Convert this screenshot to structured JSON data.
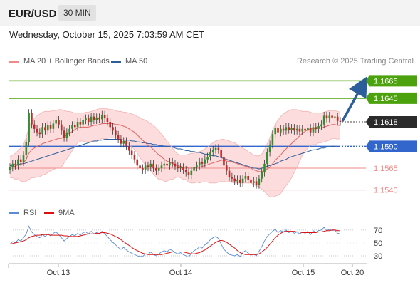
{
  "header": {
    "symbol": "EUR/USD",
    "timeframe": "30 MIN"
  },
  "datetime": "Wednesday, October 15, 2025 7:03:59 AM CET",
  "legend": {
    "bollinger": "MA 20 + Bollinger Bands",
    "ma50": "MA 50"
  },
  "credit": "Research © 2025 Trading Central",
  "rsi_legend": {
    "rsi": "RSI",
    "ma9": "9MA"
  },
  "colors": {
    "resistance": "#4ca20d",
    "support": "#f08a8a",
    "pivot": "#3366cc",
    "price": "#2b2b2b",
    "candle_up": "#2f8f2f",
    "candle_down": "#c62828",
    "band_fill": "#fbd6d6",
    "arrow": "#2d5e9c"
  },
  "chart_data": [
    {
      "type": "candlestick",
      "x_ticks": [
        "Oct 13",
        "Oct 14",
        "Oct 15",
        "Oct 20"
      ],
      "ylim": [
        1.1525,
        1.168
      ],
      "levels": [
        {
          "value": 1.1665,
          "label": "1.1665",
          "kind": "resistance"
        },
        {
          "value": 1.1645,
          "label": "1.1645",
          "kind": "resistance"
        },
        {
          "value": 1.1618,
          "label": "1.1618",
          "kind": "price"
        },
        {
          "value": 1.159,
          "label": "1.1590",
          "kind": "pivot"
        },
        {
          "value": 1.1565,
          "label": "1.1565",
          "kind": "support"
        },
        {
          "value": 1.154,
          "label": "1.1540",
          "kind": "support"
        }
      ],
      "close": [
        1.1566,
        1.157,
        1.1568,
        1.1575,
        1.1572,
        1.158,
        1.1595,
        1.1628,
        1.1615,
        1.161,
        1.1606,
        1.1604,
        1.1612,
        1.1608,
        1.1614,
        1.161,
        1.1616,
        1.162,
        1.1615,
        1.1608,
        1.16,
        1.1606,
        1.161,
        1.1614,
        1.1612,
        1.1618,
        1.1615,
        1.162,
        1.1622,
        1.1618,
        1.1624,
        1.162,
        1.1623,
        1.1621,
        1.1626,
        1.1622,
        1.1618,
        1.1612,
        1.1608,
        1.1603,
        1.1598,
        1.1593,
        1.1596,
        1.159,
        1.1585,
        1.158,
        1.1575,
        1.1568,
        1.1565,
        1.1563,
        1.1568,
        1.1566,
        1.157,
        1.1565,
        1.1562,
        1.1565,
        1.1568,
        1.157,
        1.1568,
        1.1572,
        1.157,
        1.1567,
        1.1565,
        1.1566,
        1.1563,
        1.156,
        1.1557,
        1.1562,
        1.1566,
        1.1568,
        1.1572,
        1.157,
        1.1575,
        1.1578,
        1.1583,
        1.1586,
        1.1588,
        1.1586,
        1.1578,
        1.1568,
        1.1562,
        1.1555,
        1.1553,
        1.155,
        1.1552,
        1.1548,
        1.1553,
        1.1556,
        1.1552,
        1.1548,
        1.155,
        1.1546,
        1.1553,
        1.156,
        1.157,
        1.1583,
        1.1592,
        1.1604,
        1.1611,
        1.1606,
        1.161,
        1.1608,
        1.1612,
        1.1609,
        1.1611,
        1.1608,
        1.161,
        1.1607,
        1.161,
        1.1608,
        1.1611,
        1.1606,
        1.1612,
        1.161,
        1.1613,
        1.1615,
        1.1625,
        1.1622,
        1.1625,
        1.1623,
        1.1624,
        1.1619,
        1.1618
      ],
      "ma20": [
        1.1566,
        1.1567,
        1.1567,
        1.1569,
        1.1569,
        1.1571,
        1.1575,
        1.1582,
        1.1586,
        1.1588,
        1.159,
        1.1591,
        1.1593,
        1.1594,
        1.1595,
        1.1596,
        1.1597,
        1.1598,
        1.1599,
        1.1599,
        1.1601,
        1.1603,
        1.1605,
        1.1607,
        1.1609,
        1.1611,
        1.1612,
        1.1612,
        1.1612,
        1.1612,
        1.1613,
        1.1614,
        1.1614,
        1.1615,
        1.1616,
        1.1616,
        1.1616,
        1.1616,
        1.1616,
        1.1615,
        1.1615,
        1.1614,
        1.1613,
        1.1612,
        1.161,
        1.1608,
        1.1606,
        1.1603,
        1.16,
        1.1597,
        1.1594,
        1.1591,
        1.1589,
        1.1586,
        1.1583,
        1.158,
        1.1578,
        1.1575,
        1.1573,
        1.1572,
        1.157,
        1.1569,
        1.1568,
        1.1567,
        1.1566,
        1.1566,
        1.1565,
        1.1565,
        1.1565,
        1.1566,
        1.1566,
        1.1567,
        1.1568,
        1.1569,
        1.157,
        1.1571,
        1.1572,
        1.1573,
        1.1574,
        1.1574,
        1.1573,
        1.1573,
        1.1572,
        1.1571,
        1.157,
        1.1569,
        1.1568,
        1.1567,
        1.1566,
        1.1565,
        1.1563,
        1.1562,
        1.1561,
        1.1561,
        1.1562,
        1.1564,
        1.1566,
        1.157,
        1.1574,
        1.1577,
        1.158,
        1.1584,
        1.1587,
        1.159,
        1.1593,
        1.1596,
        1.1599,
        1.1602,
        1.1605,
        1.1607,
        1.1609,
        1.161,
        1.161,
        1.161,
        1.1611,
        1.1611,
        1.1612,
        1.1613,
        1.1614,
        1.1615,
        1.1615,
        1.1614,
        1.1614
      ],
      "bb_upper": [
        1.1578,
        1.158,
        1.1582,
        1.1585,
        1.1588,
        1.1592,
        1.16,
        1.1612,
        1.1618,
        1.1622,
        1.1625,
        1.1627,
        1.1629,
        1.163,
        1.163,
        1.163,
        1.1631,
        1.1631,
        1.1632,
        1.1632,
        1.1631,
        1.163,
        1.163,
        1.1629,
        1.1628,
        1.1628,
        1.1628,
        1.1628,
        1.1629,
        1.1629,
        1.163,
        1.1631,
        1.1632,
        1.1633,
        1.1633,
        1.1633,
        1.1633,
        1.1632,
        1.1632,
        1.1631,
        1.163,
        1.163,
        1.1629,
        1.1629,
        1.1628,
        1.1627,
        1.1626,
        1.1624,
        1.1623,
        1.1621,
        1.162,
        1.1618,
        1.1616,
        1.1614,
        1.1611,
        1.1608,
        1.1604,
        1.16,
        1.1596,
        1.1592,
        1.1588,
        1.1584,
        1.1581,
        1.158,
        1.158,
        1.158,
        1.1581,
        1.1582,
        1.1582,
        1.1583,
        1.1584,
        1.1585,
        1.1587,
        1.1589,
        1.1592,
        1.1594,
        1.1596,
        1.1597,
        1.1598,
        1.1598,
        1.1597,
        1.1596,
        1.1595,
        1.1594,
        1.1592,
        1.159,
        1.1588,
        1.1586,
        1.1584,
        1.1582,
        1.158,
        1.1579,
        1.1579,
        1.1581,
        1.1586,
        1.1593,
        1.16,
        1.1608,
        1.1615,
        1.162,
        1.1624,
        1.1627,
        1.1629,
        1.1631,
        1.1632,
        1.1632,
        1.1632,
        1.1631,
        1.163,
        1.163,
        1.163,
        1.1629,
        1.1628,
        1.1628,
        1.1628,
        1.1628,
        1.1629,
        1.163,
        1.1631,
        1.1631,
        1.1631,
        1.163,
        1.1629
      ],
      "bb_lower": [
        1.1554,
        1.1554,
        1.1552,
        1.1553,
        1.155,
        1.155,
        1.155,
        1.1552,
        1.1554,
        1.1554,
        1.1555,
        1.1555,
        1.1557,
        1.1558,
        1.156,
        1.1562,
        1.1563,
        1.1565,
        1.1566,
        1.1566,
        1.1571,
        1.1576,
        1.158,
        1.1585,
        1.159,
        1.1594,
        1.1596,
        1.1596,
        1.1595,
        1.1595,
        1.1596,
        1.1597,
        1.1596,
        1.1597,
        1.1599,
        1.1599,
        1.1599,
        1.16,
        1.16,
        1.1599,
        1.16,
        1.1598,
        1.1597,
        1.1595,
        1.1592,
        1.1589,
        1.1586,
        1.1582,
        1.1577,
        1.1573,
        1.1568,
        1.1564,
        1.1562,
        1.1558,
        1.1555,
        1.1552,
        1.1552,
        1.155,
        1.155,
        1.1552,
        1.1552,
        1.1554,
        1.1555,
        1.1554,
        1.1552,
        1.1552,
        1.1549,
        1.1548,
        1.1548,
        1.1549,
        1.1548,
        1.1549,
        1.1549,
        1.1549,
        1.1548,
        1.1548,
        1.1548,
        1.1549,
        1.155,
        1.155,
        1.1549,
        1.155,
        1.1549,
        1.1548,
        1.1548,
        1.1548,
        1.1548,
        1.1548,
        1.1548,
        1.1548,
        1.1546,
        1.1545,
        1.1543,
        1.1541,
        1.1538,
        1.1535,
        1.1532,
        1.1532,
        1.1533,
        1.1534,
        1.1536,
        1.1541,
        1.1545,
        1.1549,
        1.1554,
        1.156,
        1.1566,
        1.1573,
        1.158,
        1.1584,
        1.1588,
        1.1591,
        1.1592,
        1.1592,
        1.1594,
        1.1594,
        1.1595,
        1.1596,
        1.1597,
        1.1599,
        1.1599,
        1.1598,
        1.1599
      ],
      "ma50": [
        1.1568,
        1.1568,
        1.1569,
        1.1569,
        1.157,
        1.157,
        1.1571,
        1.1572,
        1.1573,
        1.1574,
        1.1575,
        1.1576,
        1.1577,
        1.1578,
        1.1579,
        1.158,
        1.1581,
        1.1582,
        1.1583,
        1.1584,
        1.1585,
        1.1586,
        1.1587,
        1.1588,
        1.1589,
        1.159,
        1.1591,
        1.1592,
        1.1593,
        1.1594,
        1.1595,
        1.1596,
        1.1596,
        1.1597,
        1.1597,
        1.1598,
        1.1598,
        1.1598,
        1.1598,
        1.1598,
        1.1598,
        1.1598,
        1.1597,
        1.1597,
        1.1597,
        1.1596,
        1.1596,
        1.1595,
        1.1595,
        1.1594,
        1.1594,
        1.1593,
        1.1593,
        1.1592,
        1.1592,
        1.1591,
        1.1591,
        1.159,
        1.159,
        1.1589,
        1.1589,
        1.1588,
        1.1587,
        1.1587,
        1.1586,
        1.1585,
        1.1585,
        1.1584,
        1.1584,
        1.1583,
        1.1583,
        1.1582,
        1.1581,
        1.1581,
        1.158,
        1.1579,
        1.1579,
        1.1578,
        1.1577,
        1.1576,
        1.1575,
        1.1574,
        1.1573,
        1.1572,
        1.1571,
        1.157,
        1.1569,
        1.1568,
        1.1567,
        1.1566,
        1.1565,
        1.1565,
        1.1564,
        1.1565,
        1.1566,
        1.1567,
        1.1568,
        1.1569,
        1.157,
        1.1571,
        1.1573,
        1.1574,
        1.1575,
        1.1577,
        1.1578,
        1.1579,
        1.158,
        1.1581,
        1.1582,
        1.1583,
        1.1584,
        1.1585,
        1.1586,
        1.1586,
        1.1587,
        1.1588,
        1.1588,
        1.1589,
        1.1589,
        1.159,
        1.159
      ],
      "forecast": [
        1.1618,
        1.1665
      ]
    },
    {
      "type": "line",
      "name": "RSI",
      "y_ticks": [
        30,
        50,
        70
      ],
      "ylim": [
        20,
        82
      ],
      "rsi": [
        48,
        52,
        50,
        55,
        53,
        58,
        64,
        76,
        67,
        63,
        60,
        58,
        63,
        60,
        64,
        61,
        65,
        67,
        63,
        58,
        53,
        57,
        60,
        63,
        61,
        65,
        62,
        66,
        67,
        64,
        68,
        64,
        66,
        64,
        68,
        64,
        60,
        55,
        51,
        47,
        43,
        40,
        43,
        39,
        36,
        34,
        32,
        30,
        29,
        29,
        33,
        32,
        36,
        32,
        30,
        33,
        36,
        38,
        36,
        40,
        38,
        35,
        33,
        35,
        32,
        30,
        28,
        34,
        38,
        40,
        44,
        42,
        47,
        50,
        55,
        58,
        60,
        57,
        48,
        40,
        36,
        32,
        31,
        30,
        32,
        29,
        35,
        38,
        34,
        31,
        33,
        30,
        37,
        44,
        53,
        60,
        64,
        68,
        71,
        66,
        69,
        67,
        70,
        66,
        68,
        65,
        67,
        64,
        67,
        65,
        68,
        63,
        69,
        66,
        69,
        70,
        74,
        69,
        71,
        69,
        70,
        65,
        64
      ],
      "ma9": [
        48,
        49,
        50,
        51,
        52,
        53,
        55,
        58,
        60,
        61,
        62,
        62,
        63,
        63,
        63,
        62,
        62,
        62,
        62,
        62,
        61,
        61,
        60,
        60,
        60,
        60,
        61,
        62,
        63,
        64,
        64,
        64,
        65,
        65,
        66,
        66,
        65,
        64,
        62,
        60,
        58,
        55,
        52,
        49,
        46,
        43,
        40,
        38,
        36,
        34,
        33,
        32,
        32,
        32,
        32,
        32,
        32,
        33,
        34,
        35,
        36,
        36,
        36,
        36,
        36,
        35,
        34,
        33,
        33,
        34,
        35,
        37,
        39,
        42,
        45,
        48,
        51,
        53,
        54,
        53,
        51,
        48,
        45,
        42,
        38,
        35,
        33,
        32,
        32,
        32,
        32,
        32,
        33,
        36,
        39,
        43,
        48,
        53,
        58,
        62,
        65,
        67,
        68,
        68,
        68,
        68,
        67,
        67,
        66,
        66,
        66,
        66,
        66,
        66,
        67,
        67,
        68,
        69,
        69,
        70,
        70,
        69,
        69
      ],
      "x_ticks": [
        "Oct 13",
        "Oct 14",
        "Oct 15",
        "Oct 20"
      ]
    }
  ]
}
